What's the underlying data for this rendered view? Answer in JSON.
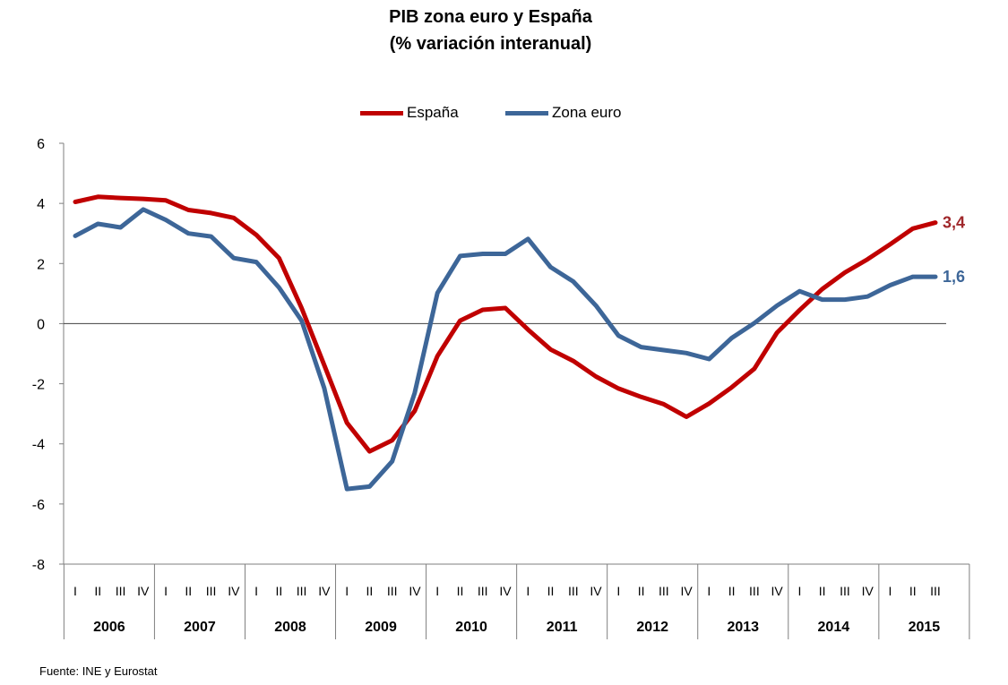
{
  "chart_data": {
    "type": "line",
    "title": "PIB zona euro y España",
    "subtitle": "(% variación interanual)",
    "source": "Fuente: INE y Eurostat",
    "ylim": [
      -8,
      6
    ],
    "yticks": [
      "6",
      "4",
      "2",
      "0",
      "-2",
      "-4",
      "-6",
      "-8"
    ],
    "legend_position": "top-center",
    "grid": false,
    "years": [
      "2006",
      "2007",
      "2008",
      "2009",
      "2010",
      "2011",
      "2012",
      "2013",
      "2014",
      "2015"
    ],
    "quarter_labels": [
      "I",
      "II",
      "III",
      "IV"
    ],
    "x": [
      "2006 I",
      "2006 II",
      "2006 III",
      "2006 IV",
      "2007 I",
      "2007 II",
      "2007 III",
      "2007 IV",
      "2008 I",
      "2008 II",
      "2008 III",
      "2008 IV",
      "2009 I",
      "2009 II",
      "2009 III",
      "2009 IV",
      "2010 I",
      "2010 II",
      "2010 III",
      "2010 IV",
      "2011 I",
      "2011 II",
      "2011 III",
      "2011 IV",
      "2012 I",
      "2012 II",
      "2012 III",
      "2012 IV",
      "2013 I",
      "2013 II",
      "2013 III",
      "2013 IV",
      "2014 I",
      "2014 II",
      "2014 III",
      "2014 IV",
      "2015 I",
      "2015 II",
      "2015 III"
    ],
    "series": [
      {
        "name": "España",
        "color": "#c00000",
        "end_label": "3,4",
        "end_label_color": "#a0282b",
        "values": [
          4.05,
          4.22,
          4.18,
          4.15,
          4.1,
          3.78,
          3.68,
          3.52,
          2.95,
          2.18,
          0.52,
          -1.38,
          -3.3,
          -4.25,
          -3.88,
          -2.9,
          -1.08,
          0.1,
          0.46,
          0.52,
          -0.2,
          -0.86,
          -1.24,
          -1.76,
          -2.16,
          -2.44,
          -2.68,
          -3.1,
          -2.66,
          -2.12,
          -1.5,
          -0.3,
          0.45,
          1.15,
          1.7,
          2.14,
          2.64,
          3.16,
          3.36
        ]
      },
      {
        "name": "Zona euro",
        "color": "#3d6698",
        "end_label": "1,6",
        "end_label_color": "#3d6698",
        "values": [
          2.92,
          3.32,
          3.2,
          3.8,
          3.45,
          3.0,
          2.9,
          2.18,
          2.05,
          1.2,
          0.1,
          -2.15,
          -5.5,
          -5.42,
          -4.58,
          -2.3,
          1.02,
          2.25,
          2.32,
          2.32,
          2.82,
          1.88,
          1.4,
          0.6,
          -0.4,
          -0.78,
          -0.88,
          -0.98,
          -1.18,
          -0.48,
          0.02,
          0.6,
          1.08,
          0.8,
          0.8,
          0.9,
          1.28,
          1.56,
          1.56
        ]
      }
    ]
  }
}
